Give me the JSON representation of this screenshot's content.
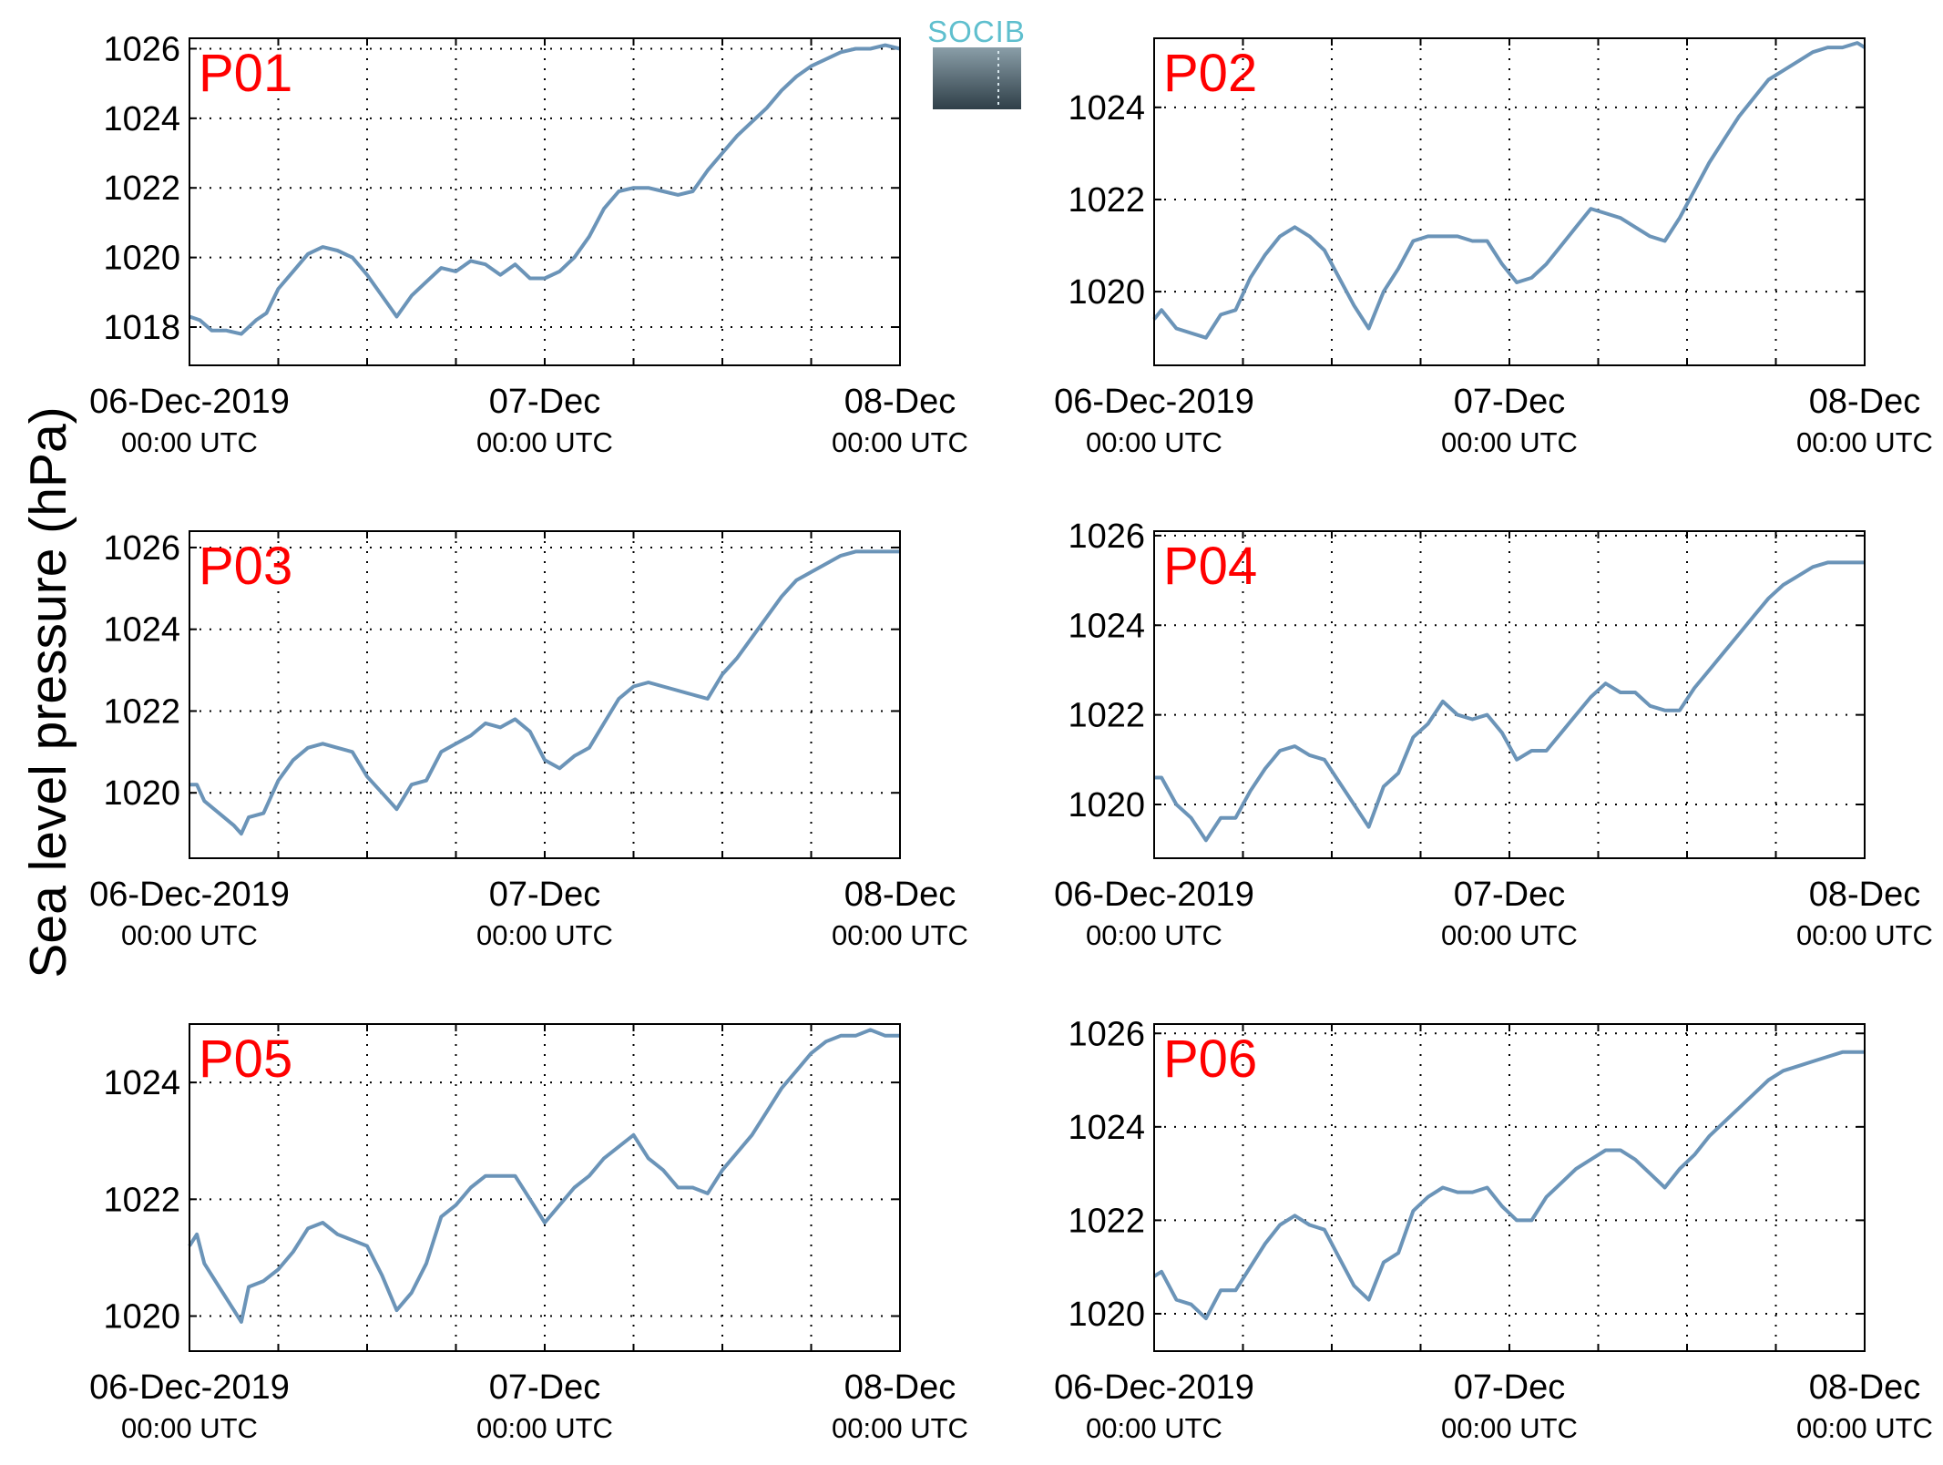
{
  "figure": {
    "ylabel": "Sea level pressure (hPa)",
    "logo_text": "SOCIB",
    "colors": {
      "line": "#6b94b8",
      "panel_label": "#ff0000"
    }
  },
  "chart_data": [
    {
      "type": "line",
      "panel": "P01",
      "x_ticks": [
        [
          "06-Dec-2019",
          "00:00 UTC"
        ],
        [
          "07-Dec",
          "00:00 UTC"
        ],
        [
          "08-Dec",
          "00:00 UTC"
        ]
      ],
      "xlim": [
        0,
        48
      ],
      "ylim": [
        1016.9,
        1026.3
      ],
      "yticks": [
        1018,
        1020,
        1022,
        1024,
        1026
      ],
      "grid": true,
      "series": [
        {
          "x": [
            0,
            0.7,
            1.5,
            2.5,
            3.5,
            4.5,
            5.2,
            6,
            7,
            8,
            9,
            10,
            11,
            12,
            13,
            14,
            15,
            16,
            17,
            18,
            19,
            20,
            21,
            22,
            23,
            24,
            25,
            26,
            27,
            28,
            29,
            30,
            31,
            32,
            33,
            34,
            35,
            36,
            37,
            38,
            39,
            40,
            41,
            42,
            43,
            44,
            45,
            46,
            47,
            48
          ],
          "y": [
            1018.3,
            1018.2,
            1017.9,
            1017.9,
            1017.8,
            1018.2,
            1018.4,
            1019.1,
            1019.6,
            1020.1,
            1020.3,
            1020.2,
            1020.0,
            1019.5,
            1018.9,
            1018.3,
            1018.9,
            1019.3,
            1019.7,
            1019.6,
            1019.9,
            1019.8,
            1019.5,
            1019.8,
            1019.4,
            1019.4,
            1019.6,
            1020.0,
            1020.6,
            1021.4,
            1021.9,
            1022.0,
            1022.0,
            1021.9,
            1021.8,
            1021.9,
            1022.5,
            1023.0,
            1023.5,
            1023.9,
            1024.3,
            1024.8,
            1025.2,
            1025.5,
            1025.7,
            1025.9,
            1026.0,
            1026.0,
            1026.1,
            1026.0
          ]
        }
      ]
    },
    {
      "type": "line",
      "panel": "P02",
      "x_ticks": [
        [
          "06-Dec-2019",
          "00:00 UTC"
        ],
        [
          "07-Dec",
          "00:00 UTC"
        ],
        [
          "08-Dec",
          "00:00 UTC"
        ]
      ],
      "xlim": [
        0,
        48
      ],
      "ylim": [
        1018.4,
        1025.5
      ],
      "yticks": [
        1020,
        1022,
        1024
      ],
      "grid": true,
      "series": [
        {
          "x": [
            0,
            0.5,
            1.5,
            2.5,
            3.5,
            4.5,
            5.5,
            6.5,
            7.5,
            8.5,
            9.5,
            10.5,
            11.5,
            12.5,
            13.5,
            14.5,
            15.5,
            16.5,
            17.5,
            18.5,
            19.5,
            20.5,
            21.5,
            22.5,
            23.5,
            24.5,
            25.5,
            26.5,
            27.5,
            28.5,
            29.5,
            30.5,
            31.5,
            32.5,
            33.5,
            34.5,
            35.5,
            36.5,
            37.5,
            38.5,
            39.5,
            40.5,
            41.5,
            42.5,
            43.5,
            44.5,
            45.5,
            46.5,
            47.5,
            48
          ],
          "y": [
            1019.4,
            1019.6,
            1019.2,
            1019.1,
            1019.0,
            1019.5,
            1019.6,
            1020.3,
            1020.8,
            1021.2,
            1021.4,
            1021.2,
            1020.9,
            1020.3,
            1019.7,
            1019.2,
            1020.0,
            1020.5,
            1021.1,
            1021.2,
            1021.2,
            1021.2,
            1021.1,
            1021.1,
            1020.6,
            1020.2,
            1020.3,
            1020.6,
            1021.0,
            1021.4,
            1021.8,
            1021.7,
            1021.6,
            1021.4,
            1021.2,
            1021.1,
            1021.6,
            1022.2,
            1022.8,
            1023.3,
            1023.8,
            1024.2,
            1024.6,
            1024.8,
            1025.0,
            1025.2,
            1025.3,
            1025.3,
            1025.4,
            1025.3
          ]
        }
      ]
    },
    {
      "type": "line",
      "panel": "P03",
      "x_ticks": [
        [
          "06-Dec-2019",
          "00:00 UTC"
        ],
        [
          "07-Dec",
          "00:00 UTC"
        ],
        [
          "08-Dec",
          "00:00 UTC"
        ]
      ],
      "xlim": [
        0,
        48
      ],
      "ylim": [
        1018.4,
        1026.4
      ],
      "yticks": [
        1020,
        1022,
        1024,
        1026
      ],
      "grid": true,
      "series": [
        {
          "x": [
            0,
            0.5,
            1,
            2,
            3,
            3.5,
            4,
            5,
            6,
            7,
            8,
            9,
            10,
            11,
            12,
            13,
            14,
            15,
            16,
            17,
            18,
            19,
            20,
            21,
            22,
            23,
            24,
            25,
            26,
            27,
            28,
            29,
            30,
            31,
            32,
            33,
            34,
            35,
            36,
            37,
            38,
            39,
            40,
            41,
            42,
            43,
            44,
            45,
            46,
            47,
            48
          ],
          "y": [
            1020.2,
            1020.2,
            1019.8,
            1019.5,
            1019.2,
            1019.0,
            1019.4,
            1019.5,
            1020.3,
            1020.8,
            1021.1,
            1021.2,
            1021.1,
            1021.0,
            1020.4,
            1020.0,
            1019.6,
            1020.2,
            1020.3,
            1021.0,
            1021.2,
            1021.4,
            1021.7,
            1021.6,
            1021.8,
            1021.5,
            1020.8,
            1020.6,
            1020.9,
            1021.1,
            1021.7,
            1022.3,
            1022.6,
            1022.7,
            1022.6,
            1022.5,
            1022.4,
            1022.3,
            1022.9,
            1023.3,
            1023.8,
            1024.3,
            1024.8,
            1025.2,
            1025.4,
            1025.6,
            1025.8,
            1025.9,
            1025.9,
            1025.9,
            1025.9
          ]
        }
      ]
    },
    {
      "type": "line",
      "panel": "P04",
      "x_ticks": [
        [
          "06-Dec-2019",
          "00:00 UTC"
        ],
        [
          "07-Dec",
          "00:00 UTC"
        ],
        [
          "08-Dec",
          "00:00 UTC"
        ]
      ],
      "xlim": [
        0,
        48
      ],
      "ylim": [
        1018.8,
        1026.1
      ],
      "yticks": [
        1020,
        1022,
        1024,
        1026
      ],
      "grid": true,
      "series": [
        {
          "x": [
            0,
            0.5,
            1.5,
            2.5,
            3.5,
            4.5,
            5.5,
            6.5,
            7.5,
            8.5,
            9.5,
            10.5,
            11.5,
            12.5,
            13.5,
            14.5,
            15.5,
            16.5,
            17.5,
            18.5,
            19.5,
            20.5,
            21.5,
            22.5,
            23.5,
            24.5,
            25.5,
            26.5,
            27.5,
            28.5,
            29.5,
            30.5,
            31.5,
            32.5,
            33.5,
            34.5,
            35.5,
            36.5,
            37.5,
            38.5,
            39.5,
            40.5,
            41.5,
            42.5,
            43.5,
            44.5,
            45.5,
            46.5,
            47.5,
            48
          ],
          "y": [
            1020.6,
            1020.6,
            1020.0,
            1019.7,
            1019.2,
            1019.7,
            1019.7,
            1020.3,
            1020.8,
            1021.2,
            1021.3,
            1021.1,
            1021.0,
            1020.5,
            1020.0,
            1019.5,
            1020.4,
            1020.7,
            1021.5,
            1021.8,
            1022.3,
            1022.0,
            1021.9,
            1022.0,
            1021.6,
            1021.0,
            1021.2,
            1021.2,
            1021.6,
            1022.0,
            1022.4,
            1022.7,
            1022.5,
            1022.5,
            1022.2,
            1022.1,
            1022.1,
            1022.6,
            1023.0,
            1023.4,
            1023.8,
            1024.2,
            1024.6,
            1024.9,
            1025.1,
            1025.3,
            1025.4,
            1025.4,
            1025.4,
            1025.4
          ]
        }
      ]
    },
    {
      "type": "line",
      "panel": "P05",
      "x_ticks": [
        [
          "06-Dec-2019",
          "00:00 UTC"
        ],
        [
          "07-Dec",
          "00:00 UTC"
        ],
        [
          "08-Dec",
          "00:00 UTC"
        ]
      ],
      "xlim": [
        0,
        48
      ],
      "ylim": [
        1019.4,
        1025.0
      ],
      "yticks": [
        1020,
        1022,
        1024
      ],
      "grid": true,
      "series": [
        {
          "x": [
            0,
            0.5,
            1,
            2,
            3,
            3.5,
            4,
            5,
            6,
            7,
            8,
            9,
            10,
            11,
            12,
            13,
            14,
            15,
            16,
            17,
            18,
            19,
            20,
            21,
            22,
            23,
            24,
            25,
            26,
            27,
            28,
            29,
            30,
            31,
            32,
            33,
            34,
            35,
            36,
            37,
            38,
            39,
            40,
            41,
            42,
            43,
            44,
            45,
            46,
            47,
            48
          ],
          "y": [
            1021.2,
            1021.4,
            1020.9,
            1020.5,
            1020.1,
            1019.9,
            1020.5,
            1020.6,
            1020.8,
            1021.1,
            1021.5,
            1021.6,
            1021.4,
            1021.3,
            1021.2,
            1020.7,
            1020.1,
            1020.4,
            1020.9,
            1021.7,
            1021.9,
            1022.2,
            1022.4,
            1022.4,
            1022.4,
            1022.0,
            1021.6,
            1021.9,
            1022.2,
            1022.4,
            1022.7,
            1022.9,
            1023.1,
            1022.7,
            1022.5,
            1022.2,
            1022.2,
            1022.1,
            1022.5,
            1022.8,
            1023.1,
            1023.5,
            1023.9,
            1024.2,
            1024.5,
            1024.7,
            1024.8,
            1024.8,
            1024.9,
            1024.8,
            1024.8
          ]
        }
      ]
    },
    {
      "type": "line",
      "panel": "P06",
      "x_ticks": [
        [
          "06-Dec-2019",
          "00:00 UTC"
        ],
        [
          "07-Dec",
          "00:00 UTC"
        ],
        [
          "08-Dec",
          "00:00 UTC"
        ]
      ],
      "xlim": [
        0,
        48
      ],
      "ylim": [
        1019.2,
        1026.2
      ],
      "yticks": [
        1020,
        1022,
        1024,
        1026
      ],
      "grid": true,
      "series": [
        {
          "x": [
            0,
            0.5,
            1.5,
            2.5,
            3.5,
            4.5,
            5.5,
            6.5,
            7.5,
            8.5,
            9.5,
            10.5,
            11.5,
            12.5,
            13.5,
            14.5,
            15.5,
            16.5,
            17.5,
            18.5,
            19.5,
            20.5,
            21.5,
            22.5,
            23.5,
            24.5,
            25.5,
            26.5,
            27.5,
            28.5,
            29.5,
            30.5,
            31.5,
            32.5,
            33.5,
            34.5,
            35.5,
            36.5,
            37.5,
            38.5,
            39.5,
            40.5,
            41.5,
            42.5,
            43.5,
            44.5,
            45.5,
            46.5,
            47.5,
            48
          ],
          "y": [
            1020.8,
            1020.9,
            1020.3,
            1020.2,
            1019.9,
            1020.5,
            1020.5,
            1021.0,
            1021.5,
            1021.9,
            1022.1,
            1021.9,
            1021.8,
            1021.2,
            1020.6,
            1020.3,
            1021.1,
            1021.3,
            1022.2,
            1022.5,
            1022.7,
            1022.6,
            1022.6,
            1022.7,
            1022.3,
            1022.0,
            1022.0,
            1022.5,
            1022.8,
            1023.1,
            1023.3,
            1023.5,
            1023.5,
            1023.3,
            1023.0,
            1022.7,
            1023.1,
            1023.4,
            1023.8,
            1024.1,
            1024.4,
            1024.7,
            1025.0,
            1025.2,
            1025.3,
            1025.4,
            1025.5,
            1025.6,
            1025.6,
            1025.6
          ]
        }
      ]
    }
  ]
}
